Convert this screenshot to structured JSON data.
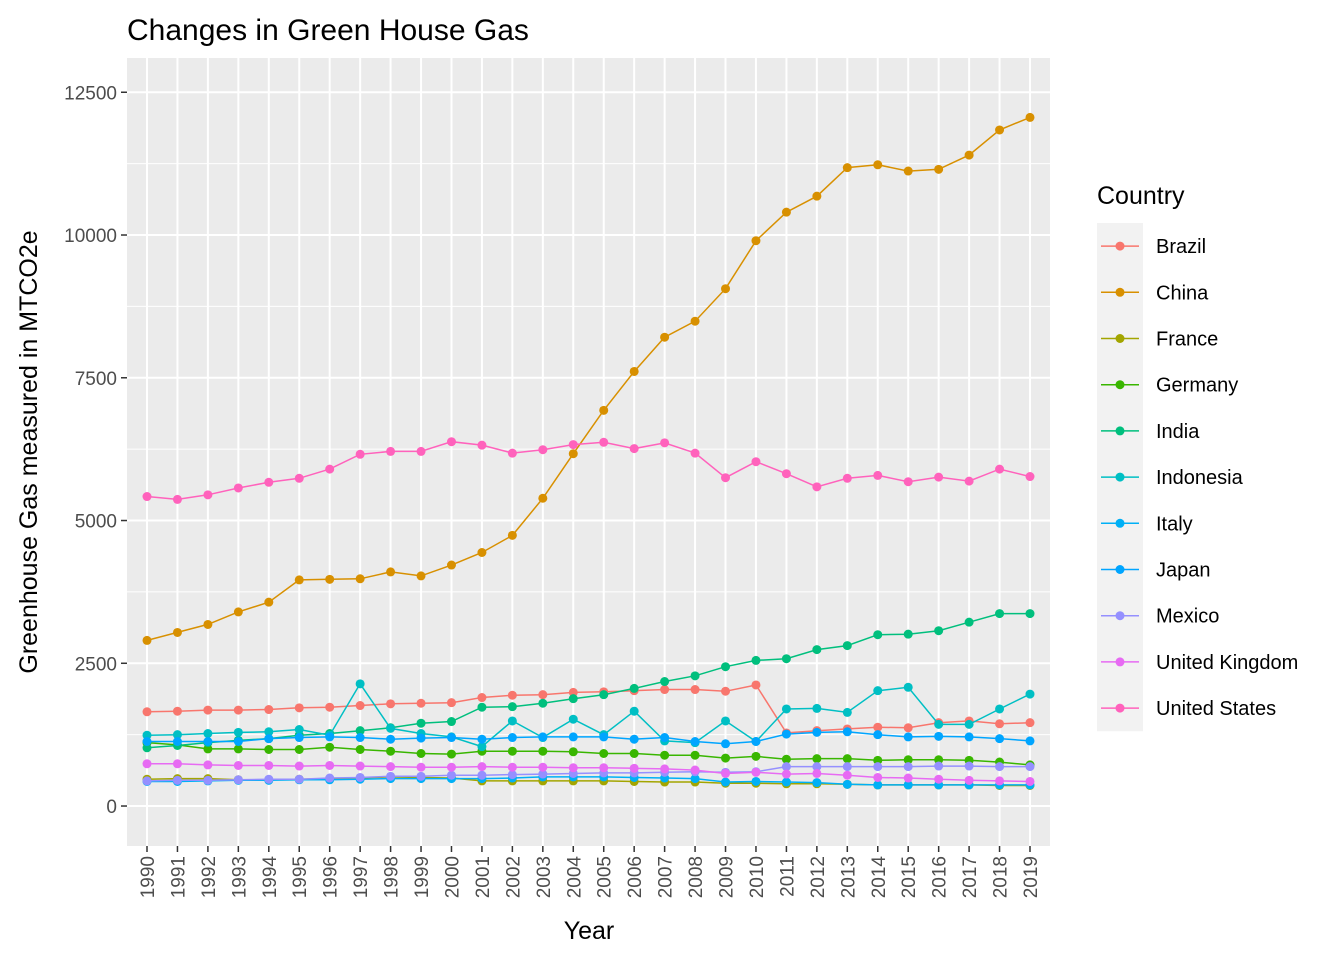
{
  "chart_data": {
    "type": "line",
    "title": "Changes in Green House Gas",
    "xlabel": "Year",
    "ylabel": "Greenhouse Gas measured in MTCO2e",
    "ylim": [
      0,
      12500
    ],
    "yticks": [
      0,
      2500,
      5000,
      7500,
      10000,
      12500
    ],
    "grid": true,
    "legend": {
      "title": "Country",
      "position": "right"
    },
    "x": [
      1990,
      1991,
      1992,
      1993,
      1994,
      1995,
      1996,
      1997,
      1998,
      1999,
      2000,
      2001,
      2002,
      2003,
      2004,
      2005,
      2006,
      2007,
      2008,
      2009,
      2010,
      2011,
      2012,
      2013,
      2014,
      2015,
      2016,
      2017,
      2018,
      2019
    ],
    "series": [
      {
        "name": "Brazil",
        "color": "#F8766D",
        "values": [
          1650,
          1660,
          1680,
          1680,
          1690,
          1720,
          1730,
          1760,
          1790,
          1800,
          1810,
          1900,
          1940,
          1950,
          1990,
          2000,
          2020,
          2040,
          2040,
          2010,
          2120,
          1280,
          1320,
          1350,
          1380,
          1370,
          1460,
          1490,
          1440,
          1460
        ]
      },
      {
        "name": "China",
        "color": "#D89000",
        "values": [
          2900,
          3040,
          3180,
          3400,
          3570,
          3960,
          3970,
          3980,
          4100,
          4030,
          4220,
          4440,
          4740,
          5390,
          6170,
          6930,
          7610,
          8210,
          8490,
          9060,
          9900,
          10400,
          10680,
          11180,
          11230,
          11120,
          11150,
          11400,
          11840,
          12060
        ]
      },
      {
        "name": "France",
        "color": "#A3A500",
        "values": [
          470,
          480,
          480,
          460,
          460,
          470,
          480,
          490,
          510,
          500,
          490,
          440,
          440,
          440,
          440,
          440,
          430,
          420,
          420,
          400,
          400,
          390,
          390,
          380,
          370,
          370,
          370,
          370,
          360,
          360
        ]
      },
      {
        "name": "Germany",
        "color": "#39B600",
        "values": [
          1110,
          1070,
          1000,
          1000,
          990,
          990,
          1030,
          990,
          960,
          920,
          910,
          960,
          960,
          960,
          950,
          920,
          920,
          890,
          890,
          840,
          870,
          820,
          830,
          830,
          800,
          810,
          810,
          800,
          770,
          720
        ]
      },
      {
        "name": "India",
        "color": "#00BF7D",
        "values": [
          1020,
          1060,
          1110,
          1150,
          1180,
          1240,
          1270,
          1320,
          1370,
          1450,
          1480,
          1730,
          1740,
          1800,
          1880,
          1950,
          2060,
          2180,
          2280,
          2440,
          2550,
          2580,
          2740,
          2810,
          3000,
          3010,
          3070,
          3220,
          3370,
          3370
        ]
      },
      {
        "name": "Indonesia",
        "color": "#00BFC4",
        "values": [
          1240,
          1250,
          1270,
          1290,
          1300,
          1340,
          1240,
          2140,
          1360,
          1270,
          1210,
          1040,
          1490,
          1200,
          1520,
          1250,
          1660,
          1140,
          1110,
          1490,
          1130,
          1700,
          1710,
          1640,
          2020,
          2080,
          1430,
          1430,
          1700,
          1960
        ]
      },
      {
        "name": "Italy",
        "color": "#00B0F6",
        "values": [
          430,
          430,
          440,
          450,
          450,
          460,
          460,
          470,
          480,
          480,
          480,
          480,
          490,
          510,
          510,
          510,
          500,
          490,
          480,
          420,
          430,
          420,
          410,
          380,
          370,
          370,
          370,
          370,
          370,
          370
        ]
      },
      {
        "name": "Japan",
        "color": "#00A5FF",
        "values": [
          1130,
          1130,
          1130,
          1130,
          1180,
          1200,
          1210,
          1200,
          1170,
          1190,
          1200,
          1170,
          1200,
          1210,
          1210,
          1210,
          1170,
          1200,
          1130,
          1090,
          1130,
          1260,
          1290,
          1300,
          1250,
          1210,
          1220,
          1210,
          1180,
          1140
        ]
      },
      {
        "name": "Mexico",
        "color": "#9590FF",
        "values": [
          440,
          450,
          450,
          460,
          470,
          470,
          490,
          500,
          520,
          520,
          540,
          540,
          550,
          560,
          570,
          580,
          580,
          590,
          600,
          590,
          600,
          690,
          690,
          690,
          690,
          690,
          700,
          700,
          690,
          690
        ]
      },
      {
        "name": "United Kingdom",
        "color": "#E76BF3",
        "values": [
          740,
          740,
          720,
          710,
          710,
          700,
          710,
          700,
          690,
          680,
          680,
          690,
          680,
          680,
          670,
          670,
          660,
          650,
          630,
          570,
          590,
          560,
          570,
          540,
          500,
          490,
          470,
          450,
          440,
          430
        ]
      },
      {
        "name": "United States",
        "color": "#FF62BC",
        "values": [
          5420,
          5370,
          5450,
          5570,
          5670,
          5740,
          5900,
          6160,
          6210,
          6210,
          6380,
          6320,
          6180,
          6240,
          6330,
          6370,
          6260,
          6360,
          6180,
          5750,
          6030,
          5820,
          5590,
          5740,
          5790,
          5680,
          5760,
          5690,
          5900,
          5770
        ]
      }
    ]
  }
}
